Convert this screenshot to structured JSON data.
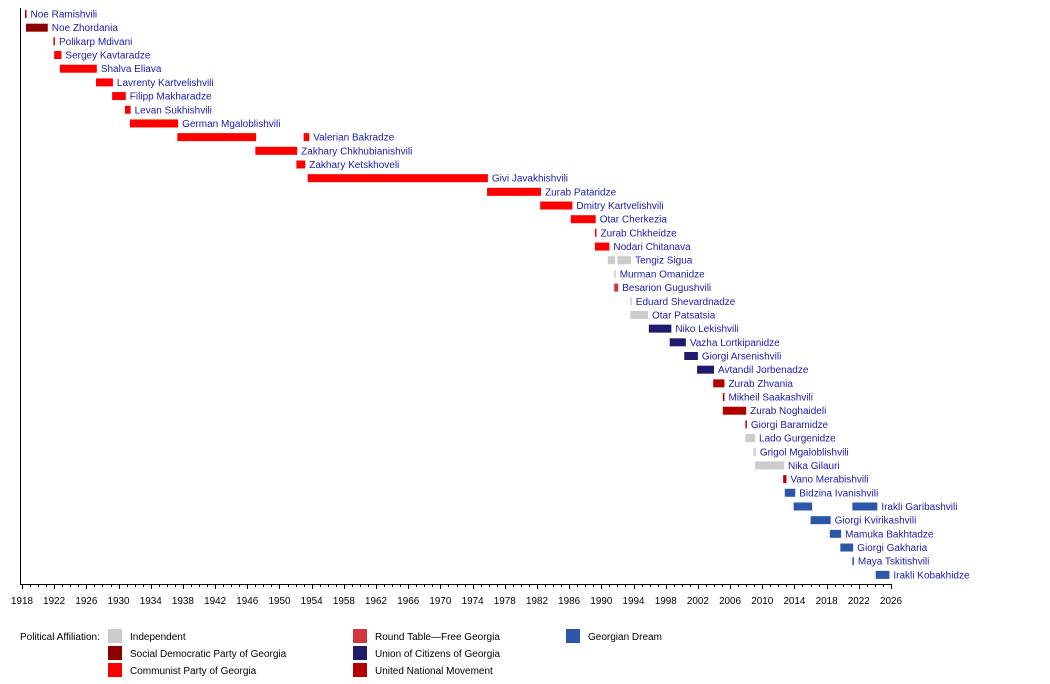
{
  "chart_data": {
    "type": "timeline",
    "xlim": [
      1918,
      2026
    ],
    "x_tick_step": 4,
    "x_ticks": [
      "1918",
      "1922",
      "1926",
      "1930",
      "1934",
      "1938",
      "1942",
      "1946",
      "1950",
      "1954",
      "1958",
      "1962",
      "1966",
      "1970",
      "1974",
      "1978",
      "1982",
      "1986",
      "1990",
      "1994",
      "1998",
      "2002",
      "2006",
      "2010",
      "2014",
      "2018",
      "2022",
      "2026"
    ],
    "legend_title": "Political Affiliation:",
    "legend_placement": "bottom",
    "parties": [
      {
        "key": "ind",
        "name": "Independent",
        "color": "#cccccc"
      },
      {
        "key": "sdp",
        "name": "Social Democratic Party of Georgia",
        "color": "#8b0000"
      },
      {
        "key": "cpg",
        "name": "Communist Party of Georgia",
        "color": "#ff0000"
      },
      {
        "key": "rt",
        "name": "Round Table—Free Georgia",
        "color": "#d2353c"
      },
      {
        "key": "ucg",
        "name": "Union of Citizens of Georgia",
        "color": "#1f1a6b"
      },
      {
        "key": "unm",
        "name": "United National Movement",
        "color": "#b30000"
      },
      {
        "key": "gd",
        "name": "Georgian Dream",
        "color": "#2c56a8"
      }
    ],
    "rows": [
      {
        "name": "Noe Ramishvili",
        "party": "sdp",
        "terms": [
          [
            1918.37,
            1918.5
          ]
        ]
      },
      {
        "name": "Noe Zhordania",
        "party": "sdp",
        "terms": [
          [
            1918.5,
            1921.2
          ]
        ]
      },
      {
        "name": "Polikarp Mdivani",
        "party": "cpg",
        "terms": [
          [
            1921.9,
            1922.1
          ]
        ]
      },
      {
        "name": "Sergey Kavtaradze",
        "party": "cpg",
        "terms": [
          [
            1922.0,
            1922.9
          ]
        ]
      },
      {
        "name": "Shalva Eliava",
        "party": "cpg",
        "terms": [
          [
            1922.7,
            1927.3
          ]
        ]
      },
      {
        "name": "Lavrenty Kartvelishvili",
        "party": "cpg",
        "terms": [
          [
            1927.2,
            1929.3
          ]
        ]
      },
      {
        "name": "Filipp Makharadze",
        "party": "cpg",
        "terms": [
          [
            1929.2,
            1930.9
          ]
        ]
      },
      {
        "name": "Levan Sukhishvili",
        "party": "cpg",
        "terms": [
          [
            1930.8,
            1931.5
          ]
        ]
      },
      {
        "name": "German Mgaloblishvili",
        "party": "cpg",
        "terms": [
          [
            1931.4,
            1937.4
          ]
        ]
      },
      {
        "name": "Valerian Bakradze",
        "party": "cpg",
        "terms": [
          [
            1937.3,
            1947.1
          ],
          [
            1953.0,
            1953.7
          ]
        ]
      },
      {
        "name": "Zakhary Chkhubianishvili",
        "party": "cpg",
        "terms": [
          [
            1947.0,
            1952.2
          ]
        ]
      },
      {
        "name": "Zakhary Ketskhoveli",
        "party": "cpg",
        "terms": [
          [
            1952.1,
            1953.2
          ]
        ]
      },
      {
        "name": "Givi Javakhishvili",
        "party": "cpg",
        "terms": [
          [
            1953.5,
            1975.9
          ]
        ]
      },
      {
        "name": "Zurab Pataridze",
        "party": "cpg",
        "terms": [
          [
            1975.8,
            1982.5
          ]
        ]
      },
      {
        "name": "Dmitry Kartvelishvili",
        "party": "cpg",
        "terms": [
          [
            1982.4,
            1986.4
          ]
        ]
      },
      {
        "name": "Otar Cherkezia",
        "party": "cpg",
        "terms": [
          [
            1986.2,
            1989.3
          ]
        ]
      },
      {
        "name": "Zurab Chkheidze",
        "party": "cpg",
        "terms": [
          [
            1989.2,
            1989.4
          ]
        ]
      },
      {
        "name": "Nodari Chitanava",
        "party": "cpg",
        "terms": [
          [
            1989.2,
            1991.0
          ]
        ]
      },
      {
        "name": "Tengiz Sigua",
        "party": "ind",
        "terms": [
          [
            1990.8,
            1991.7
          ],
          [
            1992.0,
            1993.7
          ]
        ]
      },
      {
        "name": "Murman Omanidze",
        "party": "ind",
        "terms": [
          [
            1991.6,
            1991.7
          ]
        ]
      },
      {
        "name": "Besarion Gugushvili",
        "party": "rt",
        "terms": [
          [
            1991.6,
            1992.1
          ]
        ]
      },
      {
        "name": "Eduard Shevardnadze",
        "party": "ind",
        "terms": [
          [
            1993.6,
            1993.7
          ]
        ]
      },
      {
        "name": "Otar Patsatsia",
        "party": "ind",
        "terms": [
          [
            1993.6,
            1995.8
          ]
        ]
      },
      {
        "name": "Niko Lekishvili",
        "party": "ucg",
        "terms": [
          [
            1995.9,
            1998.7
          ]
        ]
      },
      {
        "name": "Vazha Lortkipanidze",
        "party": "ucg",
        "terms": [
          [
            1998.5,
            2000.5
          ]
        ]
      },
      {
        "name": "Giorgi Arsenishvili",
        "party": "ucg",
        "terms": [
          [
            2000.3,
            2002.0
          ]
        ]
      },
      {
        "name": "Avtandil Jorbenadze",
        "party": "ucg",
        "terms": [
          [
            2001.9,
            2004.0
          ]
        ]
      },
      {
        "name": "Zurab Zhvania",
        "party": "unm",
        "terms": [
          [
            2003.9,
            2005.3
          ]
        ]
      },
      {
        "name": "Mikheil Saakashvili",
        "party": "unm",
        "terms": [
          [
            2005.1,
            2005.3
          ]
        ]
      },
      {
        "name": "Zurab Noghaideli",
        "party": "unm",
        "terms": [
          [
            2005.1,
            2008.0
          ]
        ]
      },
      {
        "name": "Giorgi Baramidze",
        "party": "unm",
        "terms": [
          [
            2007.9,
            2008.0
          ]
        ]
      },
      {
        "name": "Lado Gurgenidze",
        "party": "ind",
        "terms": [
          [
            2007.9,
            2009.1
          ]
        ]
      },
      {
        "name": "Grigol Mgaloblishvili",
        "party": "ind",
        "terms": [
          [
            2008.9,
            2009.2
          ]
        ]
      },
      {
        "name": "Nika Gilauri",
        "party": "ind",
        "terms": [
          [
            2009.1,
            2012.7
          ]
        ]
      },
      {
        "name": "Vano Merabishvili",
        "party": "unm",
        "terms": [
          [
            2012.6,
            2013.0
          ]
        ]
      },
      {
        "name": "Bidzina Ivanishvili",
        "party": "gd",
        "terms": [
          [
            2012.8,
            2014.1
          ]
        ]
      },
      {
        "name": "Irakli Garibashvili",
        "party": "gd",
        "terms": [
          [
            2013.9,
            2016.2
          ],
          [
            2021.2,
            2024.3
          ]
        ]
      },
      {
        "name": "Giorgi Kvirikashvili",
        "party": "gd",
        "terms": [
          [
            2016.0,
            2018.5
          ]
        ]
      },
      {
        "name": "Mamuka Bakhtadze",
        "party": "gd",
        "terms": [
          [
            2018.4,
            2019.8
          ]
        ]
      },
      {
        "name": "Giorgi Gakharia",
        "party": "gd",
        "terms": [
          [
            2019.7,
            2021.3
          ]
        ]
      },
      {
        "name": "Maya Tskitishvili",
        "party": "gd",
        "terms": [
          [
            2021.2,
            2021.3
          ]
        ]
      },
      {
        "name": "Irakli Kobakhidze",
        "party": "gd",
        "terms": [
          [
            2024.1,
            2025.8
          ]
        ]
      }
    ]
  }
}
